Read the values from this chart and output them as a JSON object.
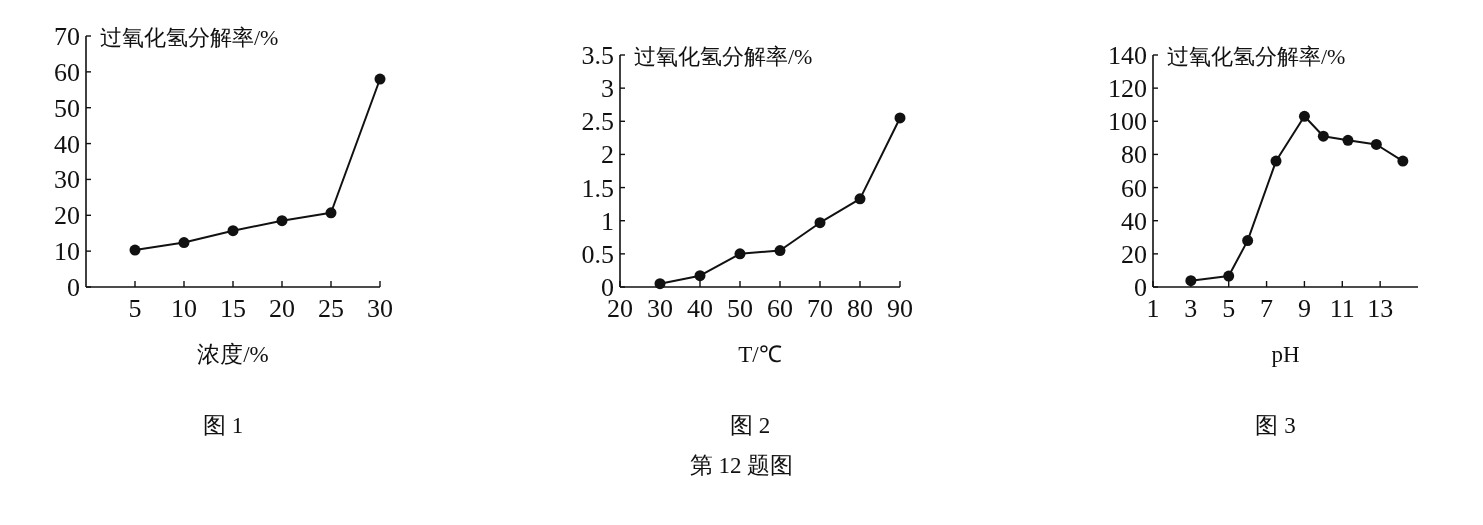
{
  "chart_data": [
    {
      "type": "line",
      "ylabel": "过氧化氢分解率/%",
      "xlabel": "浓度/%",
      "annotations": [
        "图 1"
      ],
      "x": [
        5,
        10,
        15,
        20,
        25,
        30
      ],
      "xlim": [
        0,
        30
      ],
      "xticks": [
        5,
        10,
        15,
        20,
        25,
        30
      ],
      "ylim": [
        0,
        70
      ],
      "yticks": [
        0,
        10,
        20,
        30,
        40,
        50,
        60,
        70
      ],
      "marker": "circle",
      "line_style": "solid",
      "series": [
        {
          "color": "#111111",
          "values": [
            10.3,
            12.4,
            15.7,
            18.5,
            20.7,
            58
          ]
        }
      ]
    },
    {
      "type": "line",
      "ylabel": "过氧化氢分解率/%",
      "xlabel": "T/℃",
      "annotations": [
        "图 2",
        "第 12 题图"
      ],
      "x": [
        30,
        40,
        50,
        60,
        70,
        80,
        90
      ],
      "xlim": [
        20,
        90
      ],
      "xticks": [
        20,
        30,
        40,
        50,
        60,
        70,
        80,
        90
      ],
      "ylim": [
        0,
        3.5
      ],
      "yticks": [
        0,
        0.5,
        1,
        1.5,
        2,
        2.5,
        3,
        3.5
      ],
      "marker": "circle",
      "line_style": "solid",
      "series": [
        {
          "color": "#111111",
          "values": [
            0.05,
            0.17,
            0.5,
            0.55,
            0.97,
            1.33,
            2.55
          ]
        }
      ]
    },
    {
      "type": "line",
      "ylabel": "过氧化氢分解率/%",
      "xlabel": "pH",
      "annotations": [
        "图 3"
      ],
      "x": [
        3,
        5,
        6,
        7.5,
        9,
        10,
        11.3,
        12.8,
        14.2
      ],
      "xlim": [
        1,
        15
      ],
      "xticks": [
        1,
        3,
        5,
        7,
        9,
        11,
        13
      ],
      "ylim": [
        0,
        140
      ],
      "yticks": [
        0,
        20,
        40,
        60,
        80,
        100,
        120,
        140
      ],
      "marker": "circle",
      "line_style": "solid",
      "series": [
        {
          "color": "#111111",
          "values": [
            3.8,
            6.6,
            28,
            76,
            103,
            91,
            88.5,
            86,
            76
          ]
        }
      ]
    }
  ]
}
